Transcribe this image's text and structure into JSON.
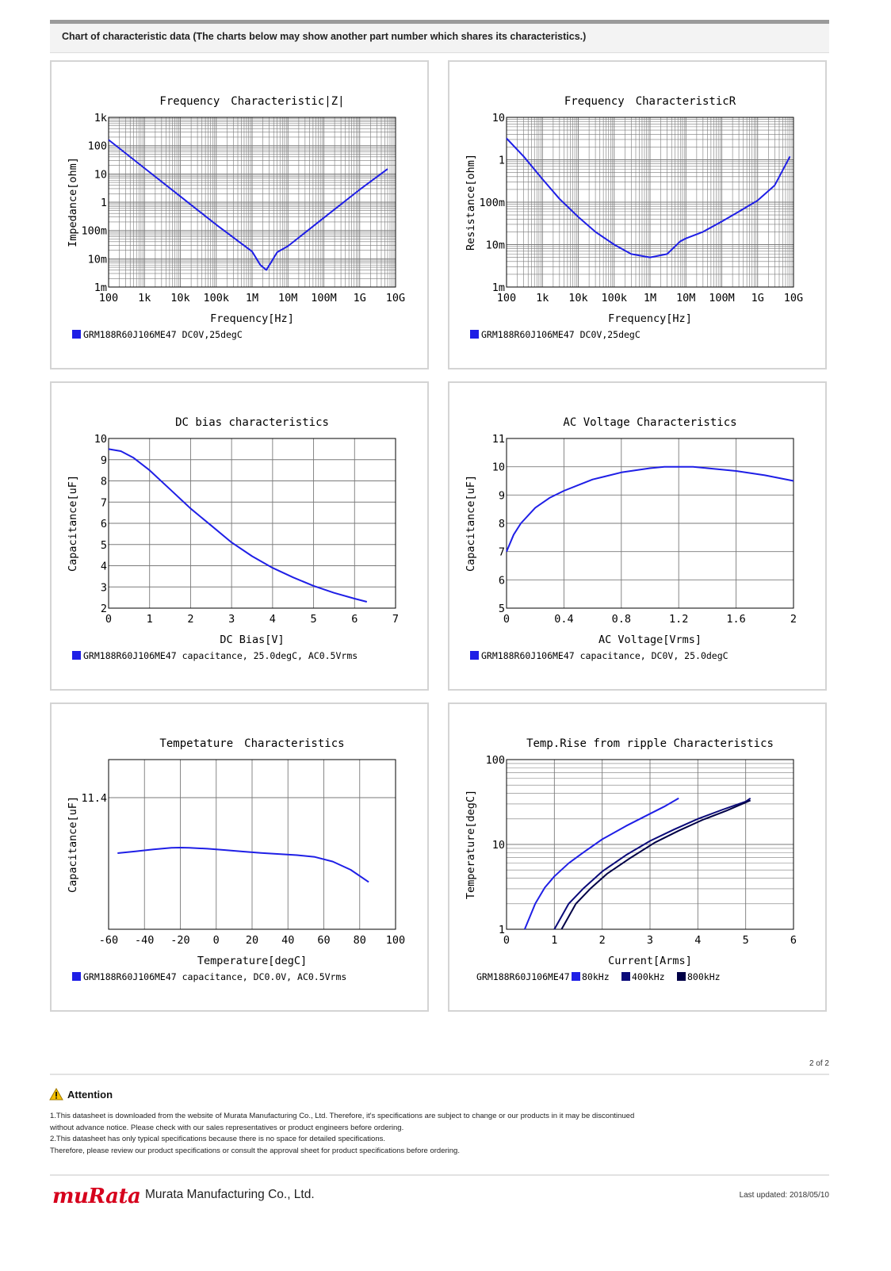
{
  "header": {
    "title": "Chart of characteristic data (The charts below may show another part number which shares its characteristics.)"
  },
  "colors": {
    "blue": "#1f1fe6",
    "navy": "#0a0a7a",
    "dark_navy": "#000046",
    "grid": "#7a7a7a"
  },
  "chart_data": [
    {
      "type": "line",
      "title": "Frequency　Characteristic|Z|",
      "xlabel": "Frequency[Hz]",
      "ylabel": "Impedance[ohm]",
      "x_scale": "log",
      "y_scale": "log",
      "xlim": [
        100,
        10000000000
      ],
      "ylim": [
        0.001,
        1000
      ],
      "x_tick_labels": [
        "100",
        "1k",
        "10k",
        "100k",
        "1M",
        "10M",
        "100M",
        "1G",
        "10G"
      ],
      "y_tick_labels": [
        "1k",
        "100",
        "10",
        "1",
        "100m",
        "10m",
        "1m"
      ],
      "legend": [
        "GRM188R60J106ME47 DC0V,25degC"
      ],
      "series": [
        {
          "x": [
            100,
            1000,
            10000,
            100000,
            1000000,
            1700000,
            2500000,
            3500000,
            5000000,
            10000000,
            100000000,
            1000000000,
            6000000000
          ],
          "y": [
            160,
            16,
            1.6,
            0.16,
            0.018,
            0.006,
            0.004,
            0.008,
            0.017,
            0.028,
            0.28,
            2.8,
            15
          ]
        }
      ]
    },
    {
      "type": "line",
      "title": "Frequency　CharacteristicR",
      "xlabel": "Frequency[Hz]",
      "ylabel": "Resistance[ohm]",
      "x_scale": "log",
      "y_scale": "log",
      "xlim": [
        100,
        10000000000
      ],
      "ylim": [
        0.001,
        10
      ],
      "x_tick_labels": [
        "100",
        "1k",
        "10k",
        "100k",
        "1M",
        "10M",
        "100M",
        "1G",
        "10G"
      ],
      "y_tick_labels": [
        "10",
        "1",
        "100m",
        "10m",
        "1m"
      ],
      "legend": [
        "GRM188R60J106ME47 DC0V,25degC"
      ],
      "series": [
        {
          "x": [
            100,
            300,
            1000,
            3000,
            10000,
            30000,
            100000,
            300000,
            1000000,
            3000000,
            7000000,
            10000000,
            30000000,
            100000000,
            300000000,
            1000000000,
            3000000000,
            8000000000
          ],
          "y": [
            3.2,
            1.2,
            0.35,
            0.12,
            0.045,
            0.02,
            0.01,
            0.006,
            0.005,
            0.006,
            0.012,
            0.014,
            0.02,
            0.035,
            0.06,
            0.11,
            0.25,
            1.2
          ]
        }
      ]
    },
    {
      "type": "line",
      "title": "DC bias characteristics",
      "xlabel": "DC Bias[V]",
      "ylabel": "Capacitance[uF]",
      "xlim": [
        0,
        7
      ],
      "ylim": [
        2,
        10
      ],
      "x_tick_labels": [
        "0",
        "1",
        "2",
        "3",
        "4",
        "5",
        "6",
        "7"
      ],
      "y_tick_labels": [
        "10",
        "9",
        "8",
        "7",
        "6",
        "5",
        "4",
        "3",
        "2"
      ],
      "legend": [
        "GRM188R60J106ME47 capacitance, 25.0degC, AC0.5Vrms"
      ],
      "series": [
        {
          "x": [
            0,
            0.3,
            0.6,
            1.0,
            1.5,
            2.0,
            2.5,
            3.0,
            3.5,
            4.0,
            4.5,
            5.0,
            5.5,
            6.0,
            6.3
          ],
          "y": [
            9.5,
            9.4,
            9.1,
            8.5,
            7.6,
            6.7,
            5.9,
            5.1,
            4.45,
            3.9,
            3.45,
            3.05,
            2.72,
            2.45,
            2.3
          ]
        }
      ]
    },
    {
      "type": "line",
      "title": "AC Voltage Characteristics",
      "xlabel": "AC Voltage[Vrms]",
      "ylabel": "Capacitance[uF]",
      "xlim": [
        0,
        2
      ],
      "ylim": [
        5,
        11
      ],
      "x_tick_labels": [
        "0",
        "0.4",
        "0.8",
        "1.2",
        "1.6",
        "2"
      ],
      "y_tick_labels": [
        "11",
        "10",
        "9",
        "8",
        "7",
        "6",
        "5"
      ],
      "legend": [
        "GRM188R60J106ME47 capacitance, DC0V, 25.0degC"
      ],
      "series": [
        {
          "x": [
            0,
            0.05,
            0.1,
            0.2,
            0.3,
            0.4,
            0.5,
            0.6,
            0.8,
            1.0,
            1.1,
            1.2,
            1.3,
            1.4,
            1.6,
            1.8,
            2.0
          ],
          "y": [
            7.0,
            7.6,
            8.0,
            8.55,
            8.9,
            9.15,
            9.35,
            9.55,
            9.8,
            9.95,
            10.0,
            10.0,
            10.0,
            9.95,
            9.85,
            9.7,
            9.5
          ]
        }
      ]
    },
    {
      "type": "line",
      "title": "Tempetature　Characteristics",
      "xlabel": "Temperature[degC]",
      "ylabel": "Capacitance[uF]",
      "xlim": [
        -60,
        100
      ],
      "x_tick_labels": [
        "-60",
        "-40",
        "-20",
        "0",
        "20",
        "40",
        "60",
        "80",
        "100"
      ],
      "y_tick_labels": [
        "11.4"
      ],
      "legend": [
        "GRM188R60J106ME47 capacitance, DC0.0V, AC0.5Vrms"
      ],
      "series": [
        {
          "x": [
            -55,
            -45,
            -35,
            -25,
            -20,
            -15,
            -5,
            5,
            15,
            25,
            35,
            45,
            55,
            65,
            75,
            85
          ],
          "y": [
            0.0,
            0.08,
            0.17,
            0.24,
            0.25,
            0.24,
            0.2,
            0.14,
            0.07,
            0.01,
            -0.04,
            -0.09,
            -0.17,
            -0.38,
            -0.75,
            -1.3
          ]
        }
      ]
    },
    {
      "type": "line",
      "title": "Temp.Rise from ripple Characteristics",
      "xlabel": "Current[Arms]",
      "ylabel": "Temperature[degC]",
      "y_scale": "log",
      "xlim": [
        0,
        6
      ],
      "ylim": [
        1,
        100
      ],
      "x_tick_labels": [
        "0",
        "1",
        "2",
        "3",
        "4",
        "5",
        "6"
      ],
      "y_tick_labels": [
        "100",
        "10",
        "1"
      ],
      "legend_prefix": "GRM188R60J106ME47",
      "legend": [
        "80kHz",
        "400kHz",
        "800kHz"
      ],
      "series": [
        {
          "name": "80kHz",
          "x": [
            0.38,
            0.6,
            0.8,
            1.0,
            1.3,
            1.6,
            2.0,
            2.5,
            3.0,
            3.3,
            3.6
          ],
          "y": [
            1.0,
            2.0,
            3.1,
            4.2,
            6.0,
            8.0,
            11.5,
            16.5,
            23.0,
            28.0,
            35.0
          ]
        },
        {
          "name": "400kHz",
          "x": [
            1.0,
            1.3,
            1.6,
            2.0,
            2.5,
            3.0,
            3.5,
            4.0,
            4.5,
            5.0,
            5.1
          ],
          "y": [
            1.0,
            2.0,
            3.0,
            4.8,
            7.5,
            11.0,
            15.0,
            20.0,
            25.5,
            32.0,
            35.0
          ]
        },
        {
          "name": "800kHz",
          "x": [
            1.15,
            1.45,
            1.75,
            2.1,
            2.6,
            3.1,
            3.6,
            4.1,
            4.6,
            5.1
          ],
          "y": [
            1.0,
            2.0,
            3.0,
            4.5,
            7.0,
            10.5,
            14.5,
            19.5,
            25.0,
            33.0
          ]
        }
      ]
    }
  ],
  "pager": "2 of 2",
  "attention": {
    "title": "Attention",
    "lines": [
      "1.This datasheet is downloaded from the website of Murata Manufacturing Co., Ltd. Therefore, it's specifications are subject to change or our products in it may be discontinued",
      "without advance notice. Please check with our sales representatives or product engineers before ordering.",
      "2.This datasheet has only typical specifications because there is no space for detailed specifications.",
      "Therefore, please review our product specifications or consult the approval sheet for product specifications before ordering."
    ]
  },
  "footer": {
    "logo_text": "muRata",
    "company": "Murata Manufacturing Co., Ltd.",
    "updated": "Last updated: 2018/05/10"
  }
}
